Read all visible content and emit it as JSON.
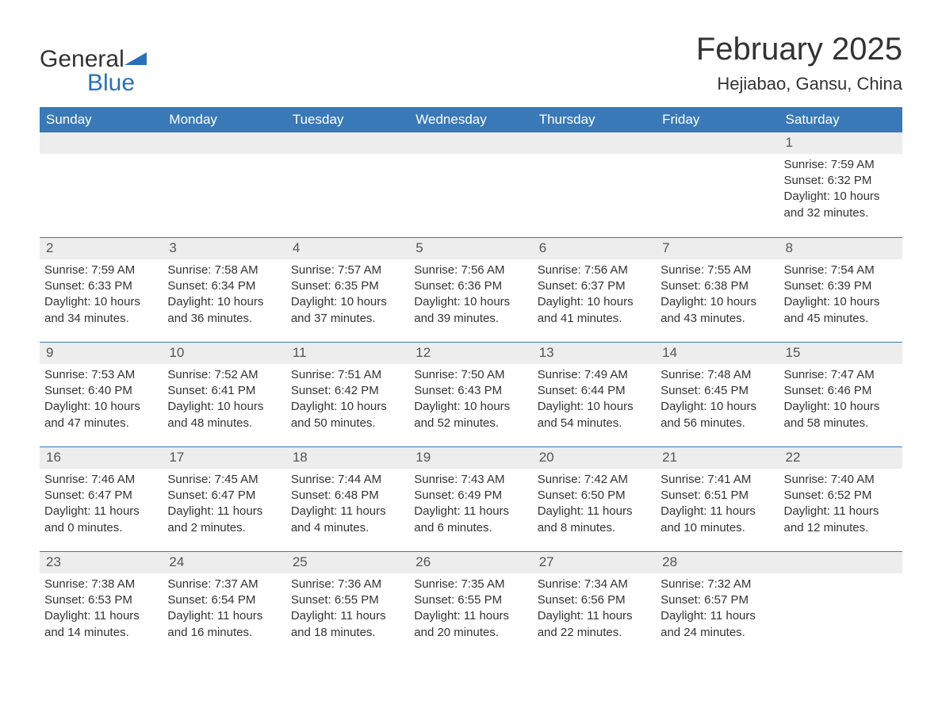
{
  "brand": {
    "part1": "General",
    "part2": "Blue",
    "color_primary": "#2a71b8"
  },
  "title": "February 2025",
  "location": "Hejiabao, Gansu, China",
  "colors": {
    "header_bg": "#3a79b7",
    "header_text": "#ffffff",
    "band_bg": "#ededed",
    "rule": "#3a79b7",
    "text": "#333333",
    "page_bg": "#ffffff"
  },
  "day_headers": [
    "Sunday",
    "Monday",
    "Tuesday",
    "Wednesday",
    "Thursday",
    "Friday",
    "Saturday"
  ],
  "weeks": [
    [
      null,
      null,
      null,
      null,
      null,
      null,
      {
        "n": "1",
        "sunrise": "Sunrise: 7:59 AM",
        "sunset": "Sunset: 6:32 PM",
        "day1": "Daylight: 10 hours",
        "day2": "and 32 minutes."
      }
    ],
    [
      {
        "n": "2",
        "sunrise": "Sunrise: 7:59 AM",
        "sunset": "Sunset: 6:33 PM",
        "day1": "Daylight: 10 hours",
        "day2": "and 34 minutes."
      },
      {
        "n": "3",
        "sunrise": "Sunrise: 7:58 AM",
        "sunset": "Sunset: 6:34 PM",
        "day1": "Daylight: 10 hours",
        "day2": "and 36 minutes."
      },
      {
        "n": "4",
        "sunrise": "Sunrise: 7:57 AM",
        "sunset": "Sunset: 6:35 PM",
        "day1": "Daylight: 10 hours",
        "day2": "and 37 minutes."
      },
      {
        "n": "5",
        "sunrise": "Sunrise: 7:56 AM",
        "sunset": "Sunset: 6:36 PM",
        "day1": "Daylight: 10 hours",
        "day2": "and 39 minutes."
      },
      {
        "n": "6",
        "sunrise": "Sunrise: 7:56 AM",
        "sunset": "Sunset: 6:37 PM",
        "day1": "Daylight: 10 hours",
        "day2": "and 41 minutes."
      },
      {
        "n": "7",
        "sunrise": "Sunrise: 7:55 AM",
        "sunset": "Sunset: 6:38 PM",
        "day1": "Daylight: 10 hours",
        "day2": "and 43 minutes."
      },
      {
        "n": "8",
        "sunrise": "Sunrise: 7:54 AM",
        "sunset": "Sunset: 6:39 PM",
        "day1": "Daylight: 10 hours",
        "day2": "and 45 minutes."
      }
    ],
    [
      {
        "n": "9",
        "sunrise": "Sunrise: 7:53 AM",
        "sunset": "Sunset: 6:40 PM",
        "day1": "Daylight: 10 hours",
        "day2": "and 47 minutes."
      },
      {
        "n": "10",
        "sunrise": "Sunrise: 7:52 AM",
        "sunset": "Sunset: 6:41 PM",
        "day1": "Daylight: 10 hours",
        "day2": "and 48 minutes."
      },
      {
        "n": "11",
        "sunrise": "Sunrise: 7:51 AM",
        "sunset": "Sunset: 6:42 PM",
        "day1": "Daylight: 10 hours",
        "day2": "and 50 minutes."
      },
      {
        "n": "12",
        "sunrise": "Sunrise: 7:50 AM",
        "sunset": "Sunset: 6:43 PM",
        "day1": "Daylight: 10 hours",
        "day2": "and 52 minutes."
      },
      {
        "n": "13",
        "sunrise": "Sunrise: 7:49 AM",
        "sunset": "Sunset: 6:44 PM",
        "day1": "Daylight: 10 hours",
        "day2": "and 54 minutes."
      },
      {
        "n": "14",
        "sunrise": "Sunrise: 7:48 AM",
        "sunset": "Sunset: 6:45 PM",
        "day1": "Daylight: 10 hours",
        "day2": "and 56 minutes."
      },
      {
        "n": "15",
        "sunrise": "Sunrise: 7:47 AM",
        "sunset": "Sunset: 6:46 PM",
        "day1": "Daylight: 10 hours",
        "day2": "and 58 minutes."
      }
    ],
    [
      {
        "n": "16",
        "sunrise": "Sunrise: 7:46 AM",
        "sunset": "Sunset: 6:47 PM",
        "day1": "Daylight: 11 hours",
        "day2": "and 0 minutes."
      },
      {
        "n": "17",
        "sunrise": "Sunrise: 7:45 AM",
        "sunset": "Sunset: 6:47 PM",
        "day1": "Daylight: 11 hours",
        "day2": "and 2 minutes."
      },
      {
        "n": "18",
        "sunrise": "Sunrise: 7:44 AM",
        "sunset": "Sunset: 6:48 PM",
        "day1": "Daylight: 11 hours",
        "day2": "and 4 minutes."
      },
      {
        "n": "19",
        "sunrise": "Sunrise: 7:43 AM",
        "sunset": "Sunset: 6:49 PM",
        "day1": "Daylight: 11 hours",
        "day2": "and 6 minutes."
      },
      {
        "n": "20",
        "sunrise": "Sunrise: 7:42 AM",
        "sunset": "Sunset: 6:50 PM",
        "day1": "Daylight: 11 hours",
        "day2": "and 8 minutes."
      },
      {
        "n": "21",
        "sunrise": "Sunrise: 7:41 AM",
        "sunset": "Sunset: 6:51 PM",
        "day1": "Daylight: 11 hours",
        "day2": "and 10 minutes."
      },
      {
        "n": "22",
        "sunrise": "Sunrise: 7:40 AM",
        "sunset": "Sunset: 6:52 PM",
        "day1": "Daylight: 11 hours",
        "day2": "and 12 minutes."
      }
    ],
    [
      {
        "n": "23",
        "sunrise": "Sunrise: 7:38 AM",
        "sunset": "Sunset: 6:53 PM",
        "day1": "Daylight: 11 hours",
        "day2": "and 14 minutes."
      },
      {
        "n": "24",
        "sunrise": "Sunrise: 7:37 AM",
        "sunset": "Sunset: 6:54 PM",
        "day1": "Daylight: 11 hours",
        "day2": "and 16 minutes."
      },
      {
        "n": "25",
        "sunrise": "Sunrise: 7:36 AM",
        "sunset": "Sunset: 6:55 PM",
        "day1": "Daylight: 11 hours",
        "day2": "and 18 minutes."
      },
      {
        "n": "26",
        "sunrise": "Sunrise: 7:35 AM",
        "sunset": "Sunset: 6:55 PM",
        "day1": "Daylight: 11 hours",
        "day2": "and 20 minutes."
      },
      {
        "n": "27",
        "sunrise": "Sunrise: 7:34 AM",
        "sunset": "Sunset: 6:56 PM",
        "day1": "Daylight: 11 hours",
        "day2": "and 22 minutes."
      },
      {
        "n": "28",
        "sunrise": "Sunrise: 7:32 AM",
        "sunset": "Sunset: 6:57 PM",
        "day1": "Daylight: 11 hours",
        "day2": "and 24 minutes."
      },
      null
    ]
  ]
}
